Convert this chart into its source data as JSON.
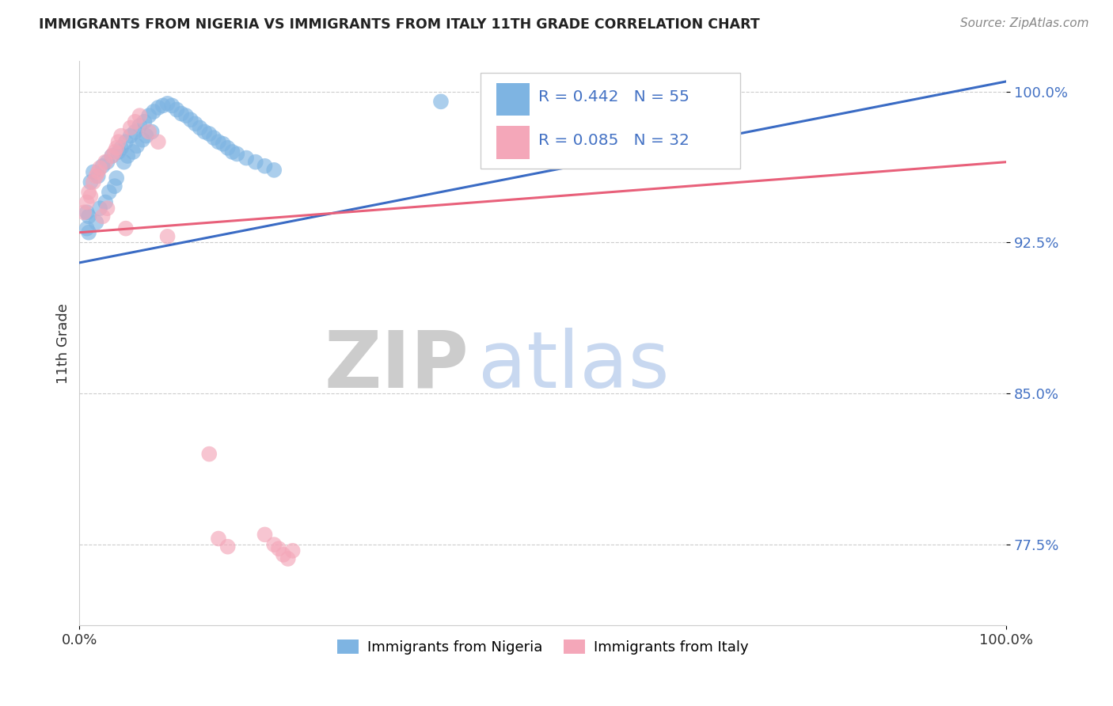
{
  "title": "IMMIGRANTS FROM NIGERIA VS IMMIGRANTS FROM ITALY 11TH GRADE CORRELATION CHART",
  "source": "Source: ZipAtlas.com",
  "ylabel": "11th Grade",
  "xlabel_nigeria": "Immigrants from Nigeria",
  "xlabel_italy": "Immigrants from Italy",
  "R_nigeria": 0.442,
  "N_nigeria": 55,
  "R_italy": 0.085,
  "N_italy": 32,
  "color_nigeria": "#7EB4E2",
  "color_italy": "#F4A7B9",
  "line_color_nigeria": "#3A6BC4",
  "line_color_italy": "#E8607A",
  "tick_color": "#4472C4",
  "background_color": "#FFFFFF",
  "xlim": [
    0.0,
    1.0
  ],
  "ylim": [
    0.735,
    1.015
  ],
  "yticks": [
    0.775,
    0.85,
    0.925,
    1.0
  ],
  "ytick_labels": [
    "77.5%",
    "85.0%",
    "92.5%",
    "100.0%"
  ],
  "xticks": [
    0.0,
    1.0
  ],
  "xtick_labels": [
    "0.0%",
    "100.0%"
  ],
  "ng_x": [
    0.008,
    0.01,
    0.012,
    0.015,
    0.018,
    0.02,
    0.022,
    0.025,
    0.028,
    0.03,
    0.032,
    0.035,
    0.038,
    0.04,
    0.042,
    0.045,
    0.048,
    0.05,
    0.052,
    0.055,
    0.058,
    0.06,
    0.062,
    0.065,
    0.068,
    0.07,
    0.072,
    0.075,
    0.078,
    0.08,
    0.085,
    0.09,
    0.095,
    0.1,
    0.105,
    0.11,
    0.115,
    0.12,
    0.125,
    0.13,
    0.135,
    0.14,
    0.145,
    0.15,
    0.155,
    0.16,
    0.165,
    0.17,
    0.18,
    0.19,
    0.2,
    0.21,
    0.39,
    0.008,
    0.01
  ],
  "ng_y": [
    0.94,
    0.938,
    0.955,
    0.96,
    0.935,
    0.958,
    0.942,
    0.963,
    0.945,
    0.965,
    0.95,
    0.968,
    0.953,
    0.957,
    0.97,
    0.972,
    0.965,
    0.975,
    0.968,
    0.978,
    0.97,
    0.98,
    0.973,
    0.983,
    0.976,
    0.985,
    0.978,
    0.988,
    0.98,
    0.99,
    0.992,
    0.993,
    0.994,
    0.993,
    0.991,
    0.989,
    0.988,
    0.986,
    0.984,
    0.982,
    0.98,
    0.979,
    0.977,
    0.975,
    0.974,
    0.972,
    0.97,
    0.969,
    0.967,
    0.965,
    0.963,
    0.961,
    0.995,
    0.932,
    0.93
  ],
  "it_x": [
    0.005,
    0.008,
    0.01,
    0.012,
    0.015,
    0.018,
    0.02,
    0.022,
    0.025,
    0.028,
    0.03,
    0.035,
    0.038,
    0.04,
    0.042,
    0.045,
    0.05,
    0.055,
    0.06,
    0.065,
    0.075,
    0.085,
    0.095,
    0.14,
    0.15,
    0.16,
    0.2,
    0.21,
    0.215,
    0.22,
    0.225,
    0.23
  ],
  "it_y": [
    0.94,
    0.945,
    0.95,
    0.948,
    0.955,
    0.958,
    0.96,
    0.962,
    0.938,
    0.965,
    0.942,
    0.968,
    0.97,
    0.972,
    0.975,
    0.978,
    0.932,
    0.982,
    0.985,
    0.988,
    0.98,
    0.975,
    0.928,
    0.82,
    0.778,
    0.774,
    0.78,
    0.775,
    0.773,
    0.77,
    0.768,
    0.772
  ],
  "ng_trend_x": [
    0.0,
    1.0
  ],
  "ng_trend_y": [
    0.915,
    1.005
  ],
  "it_trend_x": [
    0.0,
    1.0
  ],
  "it_trend_y": [
    0.93,
    0.965
  ]
}
